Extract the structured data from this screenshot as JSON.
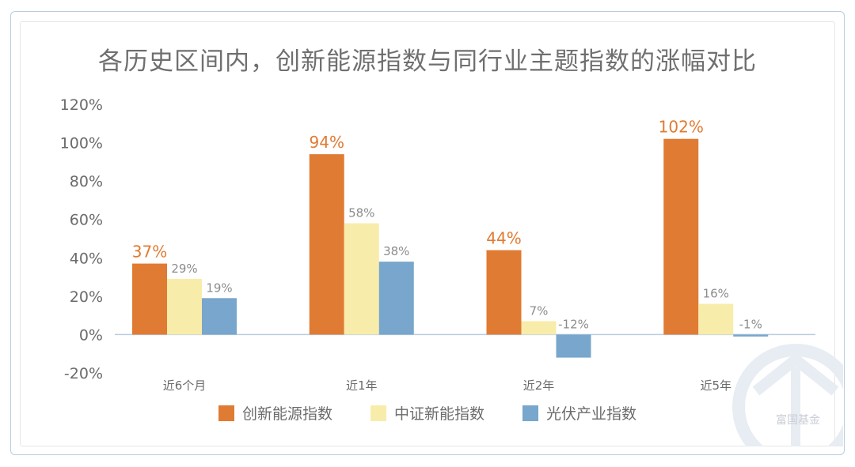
{
  "chart_data": {
    "type": "bar",
    "title": "各历史区间内，创新能源指数与同行业主题指数的涨幅对比",
    "categories": [
      "近6个月",
      "近1年",
      "近2年",
      "近5年"
    ],
    "series": [
      {
        "name": "创新能源指数",
        "color": "#e07b33",
        "values": [
          37,
          94,
          44,
          102
        ],
        "labels": [
          "37%",
          "94%",
          "44%",
          "102%"
        ]
      },
      {
        "name": "中证新能指数",
        "color": "#f8ecab",
        "values": [
          29,
          58,
          7,
          16
        ],
        "labels": [
          "29%",
          "58%",
          "7%",
          "16%"
        ]
      },
      {
        "name": "光伏产业指数",
        "color": "#78a6cc",
        "values": [
          19,
          38,
          -12,
          -1
        ],
        "labels": [
          "19%",
          "38%",
          "-12%",
          "-1%"
        ]
      }
    ],
    "ylim": [
      -20,
      120
    ],
    "yticks": [
      "-20%",
      "0%",
      "20%",
      "40%",
      "60%",
      "80%",
      "100%",
      "120%"
    ],
    "ytick_values": [
      -20,
      0,
      20,
      40,
      60,
      80,
      100,
      120
    ],
    "grid": false,
    "legend_position": "bottom"
  },
  "watermark": {
    "text": "富国基金"
  }
}
